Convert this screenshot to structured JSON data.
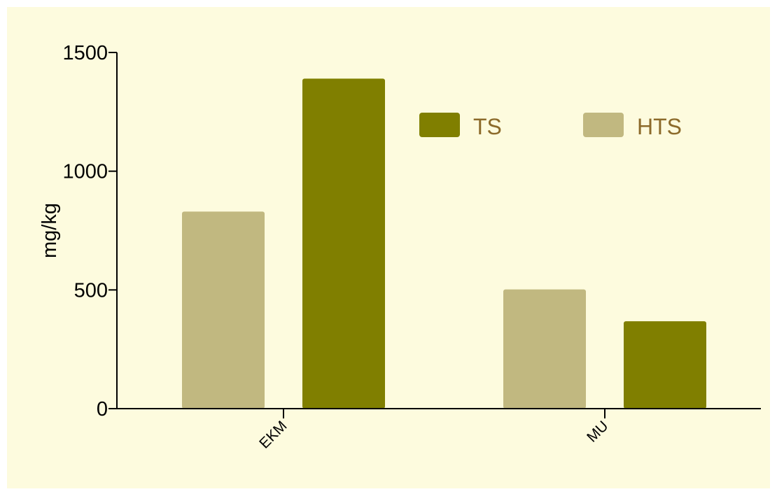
{
  "chart_data": {
    "type": "bar",
    "title": "",
    "xlabel": "",
    "ylabel": "mg/kg",
    "categories": [
      "EKM",
      "MU"
    ],
    "series": [
      {
        "name": "HTS",
        "values": [
          830,
          502
        ],
        "color": "#c1b880"
      },
      {
        "name": "TS",
        "values": [
          1390,
          368
        ],
        "color": "#807f00"
      }
    ],
    "ylim": [
      0,
      1500
    ],
    "yticks": [
      0,
      500,
      1000,
      1500
    ],
    "ytick_labels": [
      "0",
      "500",
      "1000",
      "1500"
    ],
    "grid": false,
    "legend": {
      "placement": "top-right",
      "order": [
        "TS",
        "HTS"
      ],
      "text_color": "#8c6a2a"
    },
    "background": "#fdfbde"
  }
}
